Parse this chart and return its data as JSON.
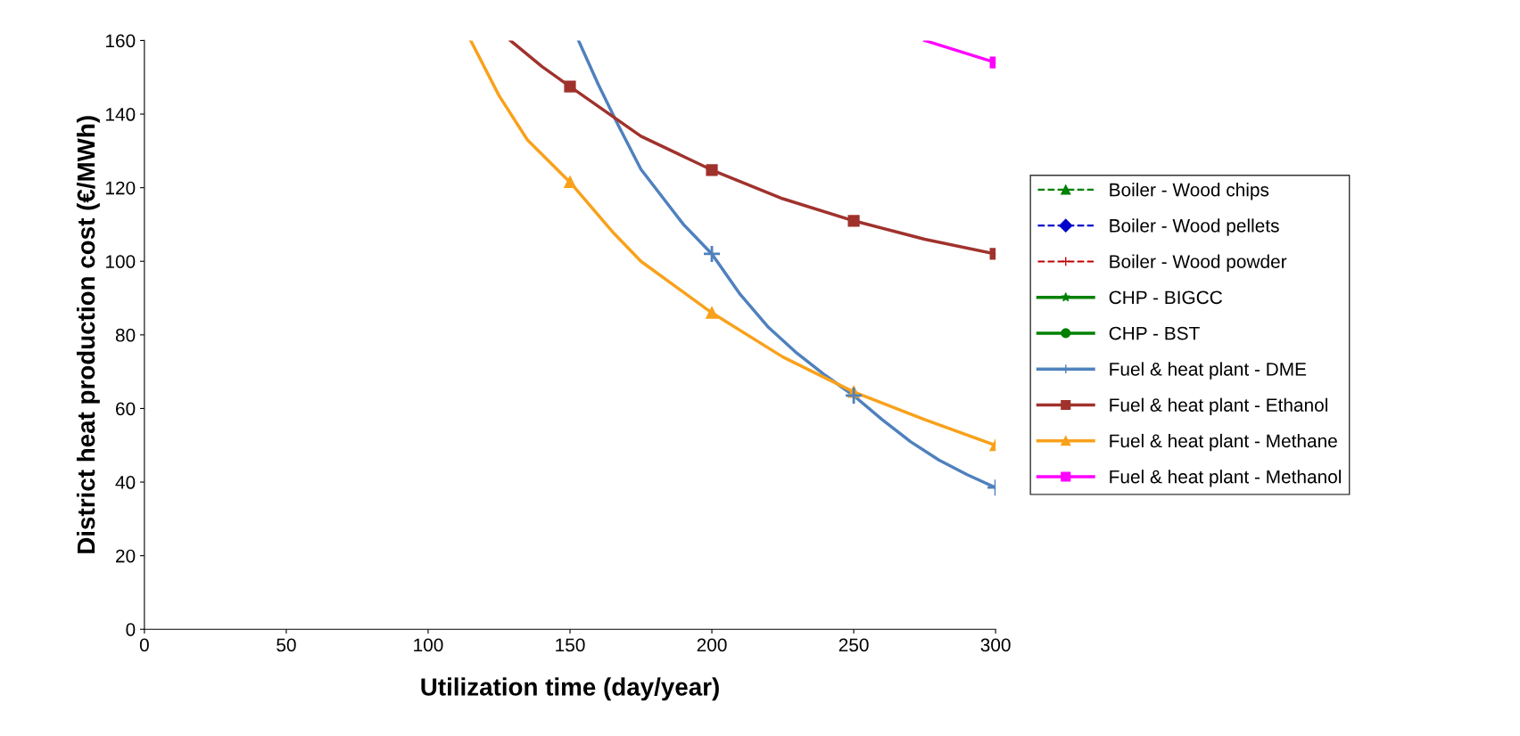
{
  "chart_data": {
    "type": "line",
    "xlabel": "Utilization time (day/year)",
    "ylabel": "District heat production cost (€/MWh)",
    "xlim": [
      0,
      300
    ],
    "ylim": [
      0,
      160
    ],
    "xticks": [
      0,
      50,
      100,
      150,
      200,
      250,
      300
    ],
    "yticks": [
      0,
      20,
      40,
      60,
      80,
      100,
      120,
      140,
      160
    ],
    "grid": false,
    "legend": "right",
    "series": [
      {
        "name": "Boiler - Wood chips",
        "color": "#008000",
        "marker": "triangle",
        "line_style": "dashed"
      },
      {
        "name": "Boiler - Wood pellets",
        "color": "#0000cc",
        "marker": "diamond",
        "line_style": "dashed"
      },
      {
        "name": "Boiler - Wood powder",
        "color": "#c00000",
        "marker": "cross",
        "line_style": "dashed"
      },
      {
        "name": "CHP - BIGCC",
        "color": "#008000",
        "marker": "star",
        "line_style": "solid"
      },
      {
        "name": "CHP - BST",
        "color": "#008000",
        "marker": "circle",
        "line_style": "solid"
      },
      {
        "name": "Fuel & heat plant - DME",
        "color": "#4f81bd",
        "marker": "none",
        "line_style": "solid",
        "x": [
          153,
          160,
          167,
          175,
          183,
          190,
          200,
          210,
          220,
          230,
          240,
          250,
          260,
          270,
          280,
          290,
          300
        ],
        "values": [
          160,
          148,
          137,
          125,
          117,
          110,
          102,
          91,
          82,
          75,
          69,
          63.5,
          57,
          51,
          46,
          42,
          38.5
        ]
      },
      {
        "type": "scatter",
        "color": "#4f81bd",
        "marker": "cross",
        "x": [
          200,
          250,
          300
        ],
        "values": [
          102,
          63.5,
          38.5
        ]
      },
      {
        "name": "Fuel & heat plant - Ethanol",
        "color": "#a0322d",
        "marker": "none",
        "line_style": "solid",
        "x": [
          129,
          140,
          150,
          175,
          200,
          225,
          250,
          275,
          300
        ],
        "values": [
          160,
          153,
          147.5,
          134,
          124.8,
          117,
          111,
          106,
          102
        ]
      },
      {
        "type": "scatter",
        "color": "#a0322d",
        "marker": "square",
        "x": [
          150,
          200,
          250,
          300
        ],
        "values": [
          147.5,
          124.8,
          111,
          102
        ]
      },
      {
        "name": "Fuel & heat plant - Methane",
        "color": "#f9a11b",
        "marker": "none",
        "line_style": "solid",
        "x": [
          115,
          125,
          135,
          150,
          165,
          175,
          200,
          225,
          250,
          275,
          300
        ],
        "values": [
          160,
          145,
          133,
          121.5,
          108,
          100,
          86,
          74,
          64.5,
          57,
          50
        ]
      },
      {
        "type": "scatter",
        "color": "#f9a11b",
        "marker": "triangle",
        "x": [
          150,
          200,
          250,
          300
        ],
        "values": [
          121.5,
          86,
          64.5,
          50
        ]
      },
      {
        "name": "Fuel & heat plant - Methanol",
        "color": "#ff00ff",
        "marker": "none",
        "line_style": "solid",
        "x": [
          275,
          300
        ],
        "values": [
          160,
          154
        ]
      },
      {
        "type": "scatter",
        "color": "#ff00ff",
        "marker": "square",
        "x": [
          300
        ],
        "values": [
          154
        ]
      }
    ]
  }
}
